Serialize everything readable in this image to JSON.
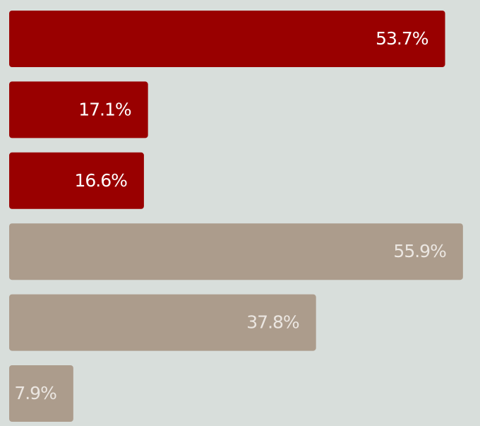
{
  "chart_data": {
    "type": "hbar",
    "categories": [
      null,
      null,
      null,
      null,
      null,
      null
    ],
    "values": [
      53.7,
      17.1,
      16.6,
      55.9,
      37.8,
      7.9
    ],
    "value_labels": [
      "53.7%",
      "17.1%",
      "16.6%",
      "55.9%",
      "37.8%",
      "7.9%"
    ],
    "colors": [
      "#990000",
      "#990000",
      "#990000",
      "#ac9c8c",
      "#ac9c8c",
      "#ac9c8c"
    ],
    "label_colors": [
      "#ffffff",
      "#ffffff",
      "#ffffff",
      "#ebe6e1",
      "#ebe6e1",
      "#ebe6e1"
    ],
    "xlim": [
      0,
      58
    ]
  }
}
